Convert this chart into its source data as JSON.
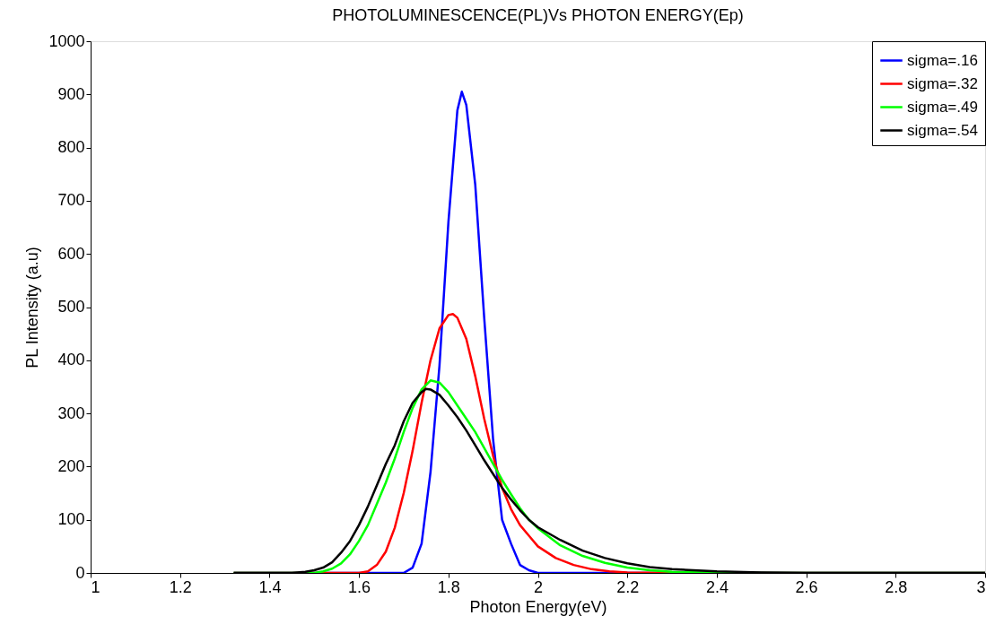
{
  "chart_data": {
    "type": "line",
    "title": "PHOTOLUMINESCENCE(PL)Vs PHOTON ENERGY(Ep)",
    "xlabel": "Photon Energy(eV)",
    "ylabel": "PL Intensity (a.u)",
    "xlim": [
      1,
      3
    ],
    "xticks": [
      1,
      1.2,
      1.4,
      1.6,
      1.8,
      2,
      2.2,
      2.4,
      2.6,
      2.8,
      3
    ],
    "ylim": [
      0,
      1000
    ],
    "yticks": [
      0,
      100,
      200,
      300,
      400,
      500,
      600,
      700,
      800,
      900,
      1000
    ],
    "grid": false,
    "legend": "top right",
    "marker": "none",
    "line_style": "solid",
    "series": [
      {
        "name": "sigma=.16",
        "color": "#0000ff",
        "x": [
          1.32,
          1.7,
          1.72,
          1.74,
          1.76,
          1.78,
          1.8,
          1.82,
          1.83,
          1.84,
          1.86,
          1.88,
          1.9,
          1.92,
          1.94,
          1.96,
          1.98,
          2.0,
          3.0
        ],
        "values": [
          0,
          0,
          10,
          55,
          190,
          390,
          660,
          870,
          905,
          880,
          730,
          480,
          250,
          100,
          55,
          15,
          5,
          0,
          0
        ]
      },
      {
        "name": "sigma=.32",
        "color": "#ff0000",
        "x": [
          1.32,
          1.6,
          1.62,
          1.64,
          1.66,
          1.68,
          1.7,
          1.72,
          1.74,
          1.76,
          1.78,
          1.8,
          1.81,
          1.82,
          1.84,
          1.86,
          1.88,
          1.9,
          1.92,
          1.94,
          1.96,
          1.98,
          2.0,
          2.04,
          2.08,
          2.12,
          2.16,
          2.2,
          2.3,
          3.0
        ],
        "values": [
          0,
          0,
          3,
          15,
          40,
          85,
          150,
          230,
          320,
          400,
          460,
          485,
          487,
          480,
          440,
          370,
          290,
          220,
          160,
          120,
          90,
          70,
          50,
          28,
          15,
          7,
          3,
          1,
          0,
          0
        ]
      },
      {
        "name": "sigma=.49",
        "color": "#00ff00",
        "x": [
          1.32,
          1.5,
          1.52,
          1.54,
          1.56,
          1.58,
          1.6,
          1.62,
          1.64,
          1.66,
          1.68,
          1.7,
          1.72,
          1.74,
          1.76,
          1.78,
          1.8,
          1.82,
          1.84,
          1.86,
          1.88,
          1.9,
          1.92,
          1.94,
          1.96,
          1.98,
          2.0,
          2.05,
          2.1,
          2.15,
          2.2,
          2.25,
          2.3,
          2.4,
          3.0
        ],
        "values": [
          0,
          0,
          3,
          8,
          18,
          35,
          60,
          90,
          130,
          170,
          215,
          265,
          310,
          345,
          362,
          358,
          340,
          315,
          290,
          265,
          235,
          205,
          175,
          148,
          122,
          100,
          84,
          52,
          32,
          19,
          10,
          5,
          2,
          0,
          0
        ]
      },
      {
        "name": "sigma=.54",
        "color": "#000000",
        "x": [
          1.32,
          1.45,
          1.48,
          1.5,
          1.52,
          1.54,
          1.56,
          1.58,
          1.6,
          1.62,
          1.64,
          1.66,
          1.68,
          1.7,
          1.72,
          1.74,
          1.75,
          1.76,
          1.78,
          1.8,
          1.82,
          1.84,
          1.86,
          1.88,
          1.9,
          1.92,
          1.94,
          1.96,
          1.98,
          2.0,
          2.05,
          2.1,
          2.15,
          2.2,
          2.25,
          2.3,
          2.4,
          2.5,
          2.6,
          3.0
        ],
        "values": [
          0,
          0,
          2,
          5,
          10,
          20,
          38,
          60,
          90,
          125,
          165,
          205,
          240,
          285,
          320,
          340,
          346,
          345,
          335,
          315,
          293,
          268,
          240,
          212,
          186,
          160,
          138,
          118,
          100,
          86,
          62,
          42,
          28,
          18,
          11,
          7,
          3,
          1,
          0,
          0
        ]
      }
    ]
  }
}
